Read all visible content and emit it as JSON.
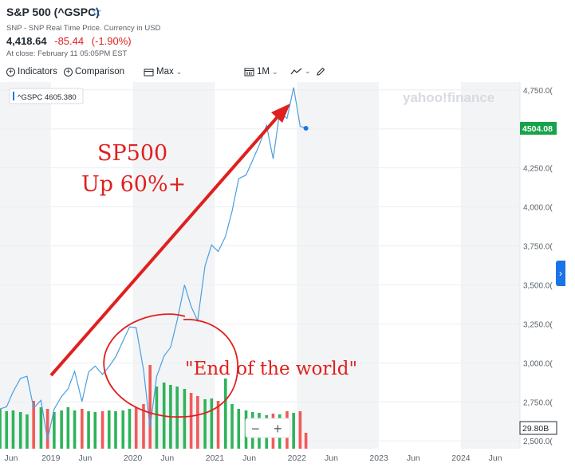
{
  "header": {
    "title": "S&P 500 (^GSPC)",
    "subtitle": "SNP - SNP Real Time Price. Currency in USD",
    "price": "4,418.64",
    "change": "-85.44",
    "change_pct": "(-1.90%)",
    "close_note": "At close: February 11 05:05PM EST"
  },
  "toolbar": {
    "indicators": "Indicators",
    "comparison": "Comparison",
    "range": "Max",
    "interval": "1M"
  },
  "colors": {
    "line": "#4a9fe0",
    "up_volume": "#2fb35a",
    "down_volume": "#f05a5a",
    "annotation": "#e0201e",
    "last_price_tag": "#16a34a",
    "accent": "#1a73e8"
  },
  "chart_data": {
    "type": "line",
    "watermark": "yahoo!finance",
    "legend_label": "^GSPC 4605.380",
    "last_price_tag": "4504.08",
    "volume_tag": "29.80B",
    "yticks": [
      2500,
      2750,
      3000,
      3250,
      3500,
      3750,
      4000,
      4250,
      4500,
      4750
    ],
    "ytick_labels": [
      "2,500.0(",
      "2,750.0(",
      "3,000.0(",
      "3,250.0(",
      "3,500.0(",
      "3,750.0(",
      "4,000.0(",
      "4,250.0(",
      "4,500.0(",
      "4,750.0("
    ],
    "ylim": [
      2450,
      4800
    ],
    "xlim": [
      2018.38,
      2024.72
    ],
    "xticks": [
      {
        "x": 2018.42,
        "label": "Jun"
      },
      {
        "x": 2019.0,
        "label": "2019"
      },
      {
        "x": 2019.42,
        "label": "Jun"
      },
      {
        "x": 2020.0,
        "label": "2020"
      },
      {
        "x": 2020.42,
        "label": "Jun"
      },
      {
        "x": 2021.0,
        "label": "2021"
      },
      {
        "x": 2021.42,
        "label": "Jun"
      },
      {
        "x": 2022.0,
        "label": "2022"
      },
      {
        "x": 2022.42,
        "label": "Jun"
      },
      {
        "x": 2023.0,
        "label": "2023"
      },
      {
        "x": 2023.42,
        "label": "Jun"
      },
      {
        "x": 2024.0,
        "label": "2024"
      },
      {
        "x": 2024.42,
        "label": "Jun"
      }
    ],
    "series": [
      {
        "x": [
          2018.38,
          2018.46,
          2018.54,
          2018.63,
          2018.71,
          2018.79,
          2018.88,
          2018.96,
          2019.04,
          2019.13,
          2019.21,
          2019.29,
          2019.38,
          2019.46,
          2019.54,
          2019.63,
          2019.71,
          2019.79,
          2019.88,
          2019.96,
          2020.04,
          2020.13,
          2020.21,
          2020.29,
          2020.38,
          2020.46,
          2020.54,
          2020.63,
          2020.71,
          2020.79,
          2020.88,
          2020.96,
          2021.04,
          2021.13,
          2021.21,
          2021.29,
          2021.38,
          2021.46,
          2021.54,
          2021.63,
          2021.71,
          2021.79,
          2021.88,
          2021.96,
          2022.04,
          2022.11
        ],
        "values": [
          2705,
          2718,
          2816,
          2901,
          2914,
          2711,
          2760,
          2507,
          2704,
          2784,
          2834,
          2946,
          2752,
          2942,
          2980,
          2926,
          2977,
          3038,
          3141,
          3231,
          3226,
          2954,
          2585,
          2912,
          3044,
          3100,
          3271,
          3500,
          3363,
          3270,
          3622,
          3756,
          3714,
          3811,
          3973,
          4181,
          4204,
          4298,
          4395,
          4523,
          4308,
          4605,
          4567,
          4766,
          4516,
          4504
        ]
      }
    ],
    "volume": {
      "ylim": [
        0,
        120
      ],
      "x": [
        2018.38,
        2018.46,
        2018.54,
        2018.63,
        2018.71,
        2018.79,
        2018.88,
        2018.96,
        2019.04,
        2019.13,
        2019.21,
        2019.29,
        2019.38,
        2019.46,
        2019.54,
        2019.63,
        2019.71,
        2019.79,
        2019.88,
        2019.96,
        2020.04,
        2020.13,
        2020.21,
        2020.29,
        2020.38,
        2020.46,
        2020.54,
        2020.63,
        2020.71,
        2020.79,
        2020.88,
        2020.96,
        2021.04,
        2021.13,
        2021.21,
        2021.29,
        2021.38,
        2021.46,
        2021.54,
        2021.63,
        2021.71,
        2021.79,
        2021.88,
        2021.96,
        2022.04,
        2022.11
      ],
      "values": [
        50,
        47,
        48,
        46,
        43,
        60,
        52,
        50,
        46,
        48,
        52,
        48,
        50,
        47,
        46,
        47,
        48,
        47,
        48,
        50,
        52,
        56,
        105,
        78,
        83,
        80,
        78,
        75,
        70,
        66,
        62,
        63,
        60,
        88,
        56,
        50,
        48,
        46,
        45,
        42,
        44,
        43,
        47,
        45,
        47,
        20
      ],
      "up": [
        true,
        true,
        true,
        true,
        true,
        false,
        true,
        false,
        true,
        true,
        true,
        true,
        false,
        true,
        true,
        false,
        true,
        true,
        true,
        true,
        false,
        false,
        false,
        true,
        true,
        true,
        true,
        true,
        false,
        false,
        true,
        true,
        false,
        true,
        true,
        true,
        true,
        true,
        true,
        true,
        false,
        true,
        false,
        true,
        false,
        false
      ]
    },
    "annotations": {
      "headline_line1": "SP500",
      "headline_line2": "Up 60%+",
      "quote": "\"End of the world\""
    },
    "zoom_minus": "−",
    "zoom_plus": "+"
  }
}
